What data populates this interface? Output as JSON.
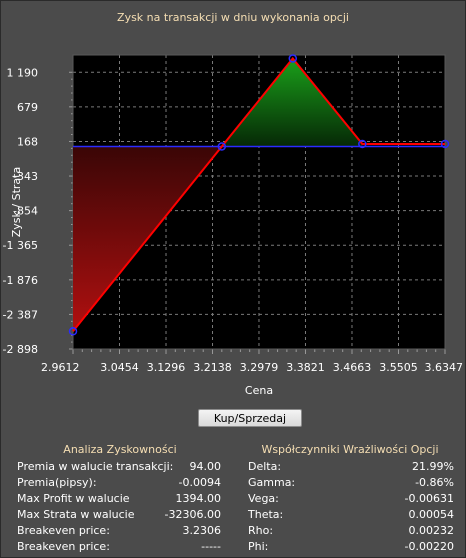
{
  "title": "Zysk na transakcji w dniu wykonania opcji",
  "chart_data": {
    "type": "area",
    "title": "Zysk na transakcji w dniu wykonania opcji",
    "xlabel": "Cena",
    "ylabel": "Zysk / Strata",
    "xlim": [
      2.9612,
      3.6347
    ],
    "ylim": [
      -2898,
      1445
    ],
    "x_ticks": [
      "2.9612",
      "3.0454",
      "3.1296",
      "3.2138",
      "3.2979",
      "3.3821",
      "3.4663",
      "3.5505",
      "3.6347"
    ],
    "y_ticks": [
      "1 190",
      "679",
      "168",
      "-343",
      "-854",
      "-1 365",
      "-1 876",
      "-2 387",
      "-2 898"
    ],
    "y_tick_values": [
      1190,
      679,
      168,
      -343,
      -854,
      -1365,
      -1876,
      -2387,
      -2898
    ],
    "baseline": 94,
    "grid": true,
    "series": [
      {
        "x": [
          2.9612,
          3.2306,
          3.3591,
          3.485,
          3.6347
        ],
        "y": [
          -2636,
          94,
          1394,
          131,
          131
        ]
      }
    ],
    "colors": {
      "line": "#ff0000",
      "baseline": "#2b2bff",
      "marker": "#2b2bff",
      "profit_fill": "#0c8a0c",
      "loss_fill": "#8a0c0c",
      "plot_bg": "#000000"
    }
  },
  "button": {
    "label": "Kup/Sprzedaj"
  },
  "analysis": {
    "title": "Analiza Zyskowności",
    "rows": [
      {
        "label": "Premia w walucie transakcji:",
        "value": "94.00"
      },
      {
        "label": "Premia(pipsy):",
        "value": "-0.0094"
      },
      {
        "label": "Max Profit w walucie",
        "value": "1394.00"
      },
      {
        "label": "Max Strata w walucie",
        "value": "-32306.00"
      },
      {
        "label": "Breakeven price:",
        "value": "3.2306"
      },
      {
        "label": "Breakeven price:",
        "value": "-----"
      }
    ]
  },
  "greeks": {
    "title": "Współczynniki Wrażliwości Opcji",
    "rows": [
      {
        "label": "Delta:",
        "value": "21.99%"
      },
      {
        "label": "Gamma:",
        "value": "-0.86%"
      },
      {
        "label": "Vega:",
        "value": "-0.00631"
      },
      {
        "label": "Theta:",
        "value": "0.00054"
      },
      {
        "label": "Rho:",
        "value": "0.00232"
      },
      {
        "label": "Phi:",
        "value": "-0.00220"
      }
    ]
  }
}
